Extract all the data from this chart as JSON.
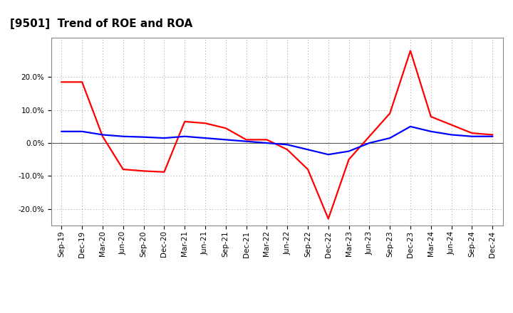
{
  "title": "[9501]  Trend of ROE and ROA",
  "x_labels": [
    "Sep-19",
    "Dec-19",
    "Mar-20",
    "Jun-20",
    "Sep-20",
    "Dec-20",
    "Mar-21",
    "Jun-21",
    "Sep-21",
    "Dec-21",
    "Mar-22",
    "Jun-22",
    "Sep-22",
    "Dec-22",
    "Mar-23",
    "Jun-23",
    "Sep-23",
    "Dec-23",
    "Mar-24",
    "Jun-24",
    "Sep-24",
    "Dec-24"
  ],
  "roe": [
    18.5,
    18.5,
    2.0,
    -8.0,
    -8.5,
    -8.8,
    6.5,
    6.0,
    4.5,
    1.0,
    1.0,
    -2.0,
    -8.0,
    -23.0,
    -5.0,
    2.0,
    9.0,
    28.0,
    8.0,
    5.5,
    3.0,
    2.5
  ],
  "roa": [
    3.5,
    3.5,
    2.5,
    2.0,
    1.8,
    1.5,
    2.0,
    1.5,
    1.0,
    0.5,
    0.0,
    -0.5,
    -2.0,
    -3.5,
    -2.5,
    0.0,
    1.5,
    5.0,
    3.5,
    2.5,
    2.0,
    2.0
  ],
  "roe_color": "#ff0000",
  "roa_color": "#0000ff",
  "background_color": "#ffffff",
  "plot_bg_color": "#ffffff",
  "grid_color": "#999999",
  "ylim": [
    -25,
    32
  ],
  "yticks": [
    -20.0,
    -10.0,
    0.0,
    10.0,
    20.0
  ],
  "title_fontsize": 11,
  "tick_fontsize": 7.5,
  "legend_fontsize": 9,
  "line_width": 1.6
}
